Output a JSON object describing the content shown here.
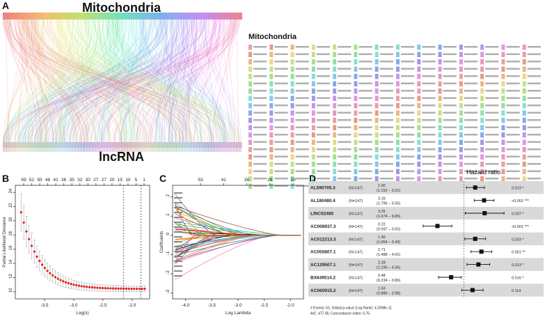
{
  "panel_a": {
    "letter": "A",
    "top_title": "Mitochondria",
    "bottom_title": "lncRNA",
    "legend_title": "Mitochondria",
    "legend_columns": 14,
    "legend_rows": 20,
    "legend_colors": [
      "#e8a0a8",
      "#e89a88",
      "#e8b888",
      "#e8d88a",
      "#c8e08a",
      "#a8e08a",
      "#90e0a8",
      "#88e0d0",
      "#88c8e8",
      "#88a8e8",
      "#a098e8",
      "#c098e8",
      "#e098e0",
      "#e898c0"
    ]
  },
  "panel_b": {
    "letter": "B",
    "ylabel": "Partial Likelihood Deviance",
    "xlabel": "Log(λ)",
    "top_ticks": [
      "59",
      "52",
      "50",
      "46",
      "41",
      "36",
      "35",
      "32",
      "30",
      "27",
      "27",
      "20",
      "15",
      "10",
      "5",
      "1"
    ],
    "x_ticks": [
      "-3.5",
      "-3.0",
      "-2.5",
      "-2.0"
    ],
    "y_ticks": [
      "10",
      "12",
      "14",
      "16",
      "18",
      "20",
      "22",
      "24"
    ]
  },
  "panel_c": {
    "letter": "C",
    "ylabel": "Coefficients",
    "xlabel": "Log Lambda",
    "top_ticks": [
      "53",
      "41",
      "36",
      "26",
      "10"
    ],
    "x_ticks": [
      "-4.0",
      "-3.5",
      "-3.0",
      "-2.5",
      "-2.0"
    ],
    "y_ticks": [
      "-3",
      "-2",
      "-1",
      "0",
      "1",
      "2"
    ]
  },
  "panel_d": {
    "letter": "D",
    "title": "Hazard ratio",
    "footnote1": "# Events: 61; Global p-value (Log-Rank): 4.2598e-11",
    "footnote2": "AIC: 477.95; Concordance Index: 0.75",
    "x_ticks": [
      "0.1",
      "0.2",
      "0.5",
      "1",
      "2",
      "5",
      "10"
    ],
    "rows": [
      {
        "name": "AL590705.3",
        "n": "(N=147)",
        "hr": "1.90",
        "ci": "(1.152 – 3.21)",
        "p": "0.013 *",
        "est": 1.9,
        "lo": 1.152,
        "hi": 3.21
      },
      {
        "name": "AL180480.4",
        "n": "(N=147)",
        "hr": "3.16",
        "ci": "(1.796 – 5.55)",
        "p": "<0.001 ***",
        "est": 3.16,
        "lo": 1.796,
        "hi": 5.55
      },
      {
        "name": "LINC02485",
        "n": "(N=147)",
        "hr": "3.25",
        "ci": "(1.074 – 9.85)",
        "p": "0.037 *",
        "est": 3.25,
        "lo": 1.074,
        "hi": 9.85
      },
      {
        "name": "AC008937.3",
        "n": "(N=147)",
        "hr": "0.22",
        "ci": "(0.097 – 0.50)",
        "p": "<0.001 ***",
        "est": 0.22,
        "lo": 0.097,
        "hi": 0.5
      },
      {
        "name": "AC012213.3",
        "n": "(N=147)",
        "hr": "1.90",
        "ci": "(1.054 – 3.43)",
        "p": "0.033 *",
        "est": 1.9,
        "lo": 1.054,
        "hi": 3.43
      },
      {
        "name": "AC055807.1",
        "n": "(N=147)",
        "hr": "2.71",
        "ci": "(1.488 – 4.91)",
        "p": "0.001 **",
        "est": 2.71,
        "lo": 1.488,
        "hi": 4.91
      },
      {
        "name": "AC129507.1",
        "n": "(N=147)",
        "hr": "2.28",
        "ci": "(1.190 – 4.36)",
        "p": "0.013 *",
        "est": 2.28,
        "lo": 1.19,
        "hi": 4.36
      },
      {
        "name": "BX649514.2",
        "n": "(N=147)",
        "hr": "0.48",
        "ci": "(0.234 – 0.86)",
        "p": "0.016 *",
        "est": 0.48,
        "lo": 0.234,
        "hi": 0.86
      },
      {
        "name": "AC060915.2",
        "n": "(N=147)",
        "hr": "1.63",
        "ci": "(0.889 – 2.98)",
        "p": "0.114",
        "est": 1.63,
        "lo": 0.889,
        "hi": 2.98
      }
    ]
  }
}
